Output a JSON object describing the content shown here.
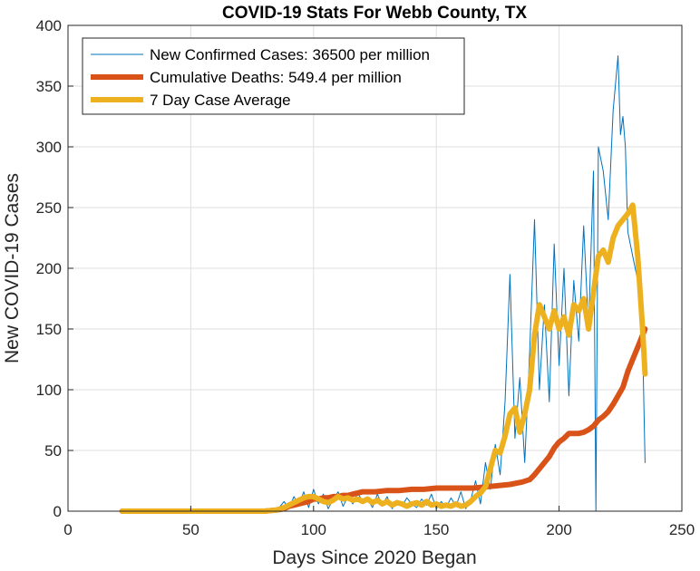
{
  "chart_data": {
    "type": "line",
    "title": "COVID-19 Stats For Webb County, TX",
    "xlabel": "Days Since 2020 Began",
    "ylabel": "New COVID-19 Cases",
    "xlim": [
      0,
      250
    ],
    "ylim": [
      0,
      400
    ],
    "xticks": [
      0,
      50,
      100,
      150,
      200,
      250
    ],
    "yticks": [
      0,
      50,
      100,
      150,
      200,
      250,
      300,
      350,
      400
    ],
    "grid": true,
    "legend_position": "top-left",
    "series": [
      {
        "name": "New Confirmed Cases: 36500 per million",
        "color": "#0072BD",
        "line_width": 1,
        "x": [
          22,
          40,
          60,
          80,
          84,
          86,
          88,
          90,
          92,
          94,
          96,
          98,
          100,
          102,
          104,
          106,
          108,
          110,
          112,
          114,
          116,
          118,
          120,
          122,
          124,
          126,
          128,
          130,
          132,
          134,
          136,
          138,
          140,
          142,
          144,
          146,
          148,
          150,
          152,
          154,
          156,
          158,
          160,
          162,
          164,
          166,
          168,
          170,
          172,
          174,
          176,
          178,
          180,
          182,
          184,
          186,
          188,
          190,
          192,
          194,
          196,
          198,
          200,
          202,
          204,
          206,
          208,
          210,
          212,
          214,
          215,
          216,
          218,
          220,
          222,
          224,
          225,
          226,
          227,
          228,
          230,
          232,
          234,
          235
        ],
        "y": [
          0,
          0,
          0,
          0,
          0,
          3,
          8,
          2,
          12,
          5,
          16,
          3,
          18,
          6,
          14,
          2,
          10,
          16,
          4,
          12,
          6,
          15,
          8,
          10,
          3,
          14,
          5,
          12,
          2,
          9,
          4,
          11,
          6,
          3,
          10,
          5,
          14,
          2,
          8,
          3,
          11,
          4,
          16,
          2,
          9,
          25,
          6,
          40,
          18,
          55,
          30,
          90,
          195,
          60,
          110,
          40,
          130,
          240,
          100,
          170,
          90,
          220,
          120,
          200,
          95,
          190,
          140,
          235,
          150,
          280,
          0,
          300,
          280,
          240,
          330,
          375,
          310,
          325,
          300,
          230,
          210,
          190,
          140,
          40
        ]
      },
      {
        "name": "Cumulative Deaths: 549.4 per million",
        "color": "#D95319",
        "line_width": 6,
        "x": [
          22,
          40,
          60,
          80,
          85,
          88,
          90,
          92,
          94,
          96,
          98,
          100,
          102,
          104,
          106,
          108,
          110,
          112,
          114,
          116,
          118,
          120,
          125,
          130,
          135,
          140,
          145,
          150,
          155,
          160,
          165,
          170,
          175,
          180,
          185,
          188,
          190,
          192,
          194,
          196,
          198,
          200,
          202,
          204,
          206,
          208,
          210,
          212,
          214,
          216,
          218,
          220,
          222,
          224,
          226,
          228,
          230,
          232,
          234,
          235
        ],
        "y": [
          0,
          0,
          0,
          0,
          1,
          2,
          4,
          5,
          6,
          7,
          8,
          10,
          10,
          11,
          11,
          12,
          12,
          13,
          13,
          14,
          15,
          16,
          16,
          17,
          17,
          18,
          18,
          19,
          19,
          19,
          19,
          20,
          21,
          22,
          24,
          26,
          30,
          35,
          40,
          45,
          52,
          57,
          60,
          64,
          64,
          64,
          65,
          67,
          70,
          75,
          78,
          82,
          88,
          95,
          102,
          115,
          125,
          135,
          145,
          150
        ]
      },
      {
        "name": "7 Day Case Average",
        "color": "#EDB120",
        "line_width": 6,
        "x": [
          22,
          40,
          60,
          80,
          85,
          88,
          90,
          92,
          94,
          96,
          98,
          100,
          102,
          104,
          106,
          108,
          110,
          112,
          114,
          116,
          118,
          120,
          122,
          124,
          126,
          128,
          130,
          132,
          134,
          136,
          138,
          140,
          142,
          144,
          146,
          148,
          150,
          152,
          154,
          156,
          158,
          160,
          162,
          164,
          166,
          168,
          170,
          172,
          174,
          176,
          178,
          180,
          182,
          184,
          186,
          188,
          190,
          192,
          194,
          196,
          198,
          200,
          202,
          204,
          206,
          208,
          210,
          212,
          214,
          216,
          218,
          220,
          222,
          224,
          226,
          228,
          230,
          232,
          234,
          235
        ],
        "y": [
          0,
          0,
          0,
          0,
          1,
          3,
          5,
          7,
          9,
          11,
          12,
          12,
          10,
          8,
          7,
          9,
          12,
          10,
          11,
          9,
          10,
          8,
          10,
          7,
          9,
          6,
          8,
          5,
          7,
          6,
          4,
          6,
          7,
          5,
          8,
          5,
          6,
          4,
          5,
          4,
          6,
          4,
          5,
          8,
          12,
          15,
          20,
          35,
          50,
          48,
          62,
          80,
          85,
          65,
          80,
          100,
          145,
          170,
          160,
          150,
          165,
          150,
          160,
          145,
          170,
          165,
          175,
          150,
          180,
          210,
          215,
          205,
          225,
          235,
          240,
          245,
          252,
          210,
          150,
          113
        ]
      }
    ]
  }
}
